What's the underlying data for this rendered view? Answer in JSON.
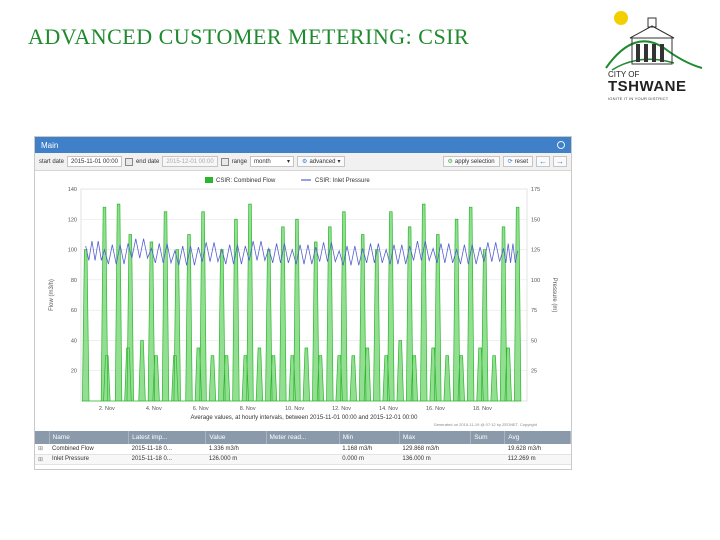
{
  "slide": {
    "title": "ADVANCED CUSTOMER METERING: CSIR"
  },
  "logo": {
    "city_of": "CITY OF",
    "name": "TSHWANE",
    "motto": "IGNITE IT IN YOUR DISTRICT"
  },
  "panel": {
    "title": "Main",
    "toolbar": {
      "start_label": "start date",
      "start_value": "2015-11-01 00:00",
      "end_label": "end date",
      "end_value": "2015-12-01 00:00",
      "range_label": "range",
      "range_value": "month",
      "advanced_label": "advanced",
      "apply_label": "apply selection",
      "reset_label": "reset"
    },
    "footer_note": "Average values, at hourly intervals, between 2015-11-01 00:00 and 2015-12-01 00:00",
    "generated": "Generated on 2015-11-19 @ 07:12 by ZEDNET. Copyright"
  },
  "chart_data": {
    "type": "area",
    "x_ticks": [
      "2. Nov",
      "4. Nov",
      "6. Nov",
      "8. Nov",
      "10. Nov",
      "12. Nov",
      "14. Nov",
      "16. Nov",
      "18. Nov"
    ],
    "ylabel": "Flow (m3/h)",
    "ylabel_right": "Pressure (m)",
    "y_ticks": [
      20,
      40,
      60,
      80,
      100,
      120,
      140
    ],
    "y_ticks_right": [
      25,
      50,
      75,
      100,
      125,
      150,
      175
    ],
    "ylim": [
      0,
      140
    ],
    "ylim_right": [
      0,
      175
    ],
    "legend_position": "top-center",
    "colors": {
      "flow": "#2db52d",
      "flow_fill": "#7fd97f",
      "pressure": "#5560d0"
    },
    "series": [
      {
        "name": "CSIR: Combined Flow",
        "axis": "left",
        "x": [
          0.2,
          1.0,
          1.1,
          1.6,
          2.0,
          2.1,
          2.6,
          3.0,
          3.2,
          3.6,
          4.0,
          4.1,
          4.6,
          5.0,
          5.2,
          5.6,
          6.0,
          6.2,
          6.6,
          7.0,
          7.2,
          7.6,
          8.0,
          8.2,
          8.6,
          9.0,
          9.2,
          9.6,
          10.0,
          10.2,
          10.6,
          11.0,
          11.2,
          11.6,
          12.0,
          12.2,
          12.6,
          13.0,
          13.2,
          13.6,
          14.0,
          14.2,
          14.6,
          15.0,
          15.2,
          15.6,
          16.0,
          16.2,
          16.6,
          17.0,
          17.2,
          17.6,
          18.0,
          18.2,
          18.6
        ],
        "y": [
          100,
          128,
          30,
          130,
          35,
          110,
          40,
          105,
          30,
          125,
          30,
          100,
          110,
          35,
          125,
          30,
          100,
          30,
          120,
          30,
          130,
          35,
          100,
          30,
          115,
          30,
          120,
          35,
          105,
          30,
          115,
          30,
          125,
          30,
          110,
          35,
          100,
          30,
          125,
          40,
          115,
          30,
          130,
          35,
          110,
          30,
          120,
          30,
          128,
          35,
          100,
          30,
          115,
          35,
          128
        ]
      },
      {
        "name": "CSIR: Inlet Pressure",
        "axis": "right",
        "x": [
          0.2,
          1.0,
          2.0,
          3.0,
          4.0,
          5.0,
          6.0,
          7.0,
          8.0,
          9.0,
          10.0,
          11.0,
          12.0,
          13.0,
          14.0,
          15.0,
          16.0,
          17.0,
          18.0,
          18.6
        ],
        "y": [
          128,
          125,
          130,
          126,
          124,
          127,
          125,
          128,
          126,
          125,
          127,
          124,
          126,
          125,
          128,
          126,
          125,
          127,
          126,
          124
        ]
      }
    ]
  },
  "summary": {
    "columns": [
      "Name",
      "Latest imp...",
      "Value",
      "Meter read...",
      "Min",
      "Max",
      "Sum",
      "Avg"
    ],
    "rows": [
      [
        "Combined Flow",
        "2015-11-18 0...",
        "1.336 m3/h",
        "",
        "1.168 m3/h",
        "129.868 m3/h",
        "",
        "19.628 m3/h"
      ],
      [
        "Inlet Pressure",
        "2015-11-18 0...",
        "126.000 m",
        "",
        "0.000 m",
        "136.000 m",
        "",
        "112.269 m"
      ]
    ]
  }
}
